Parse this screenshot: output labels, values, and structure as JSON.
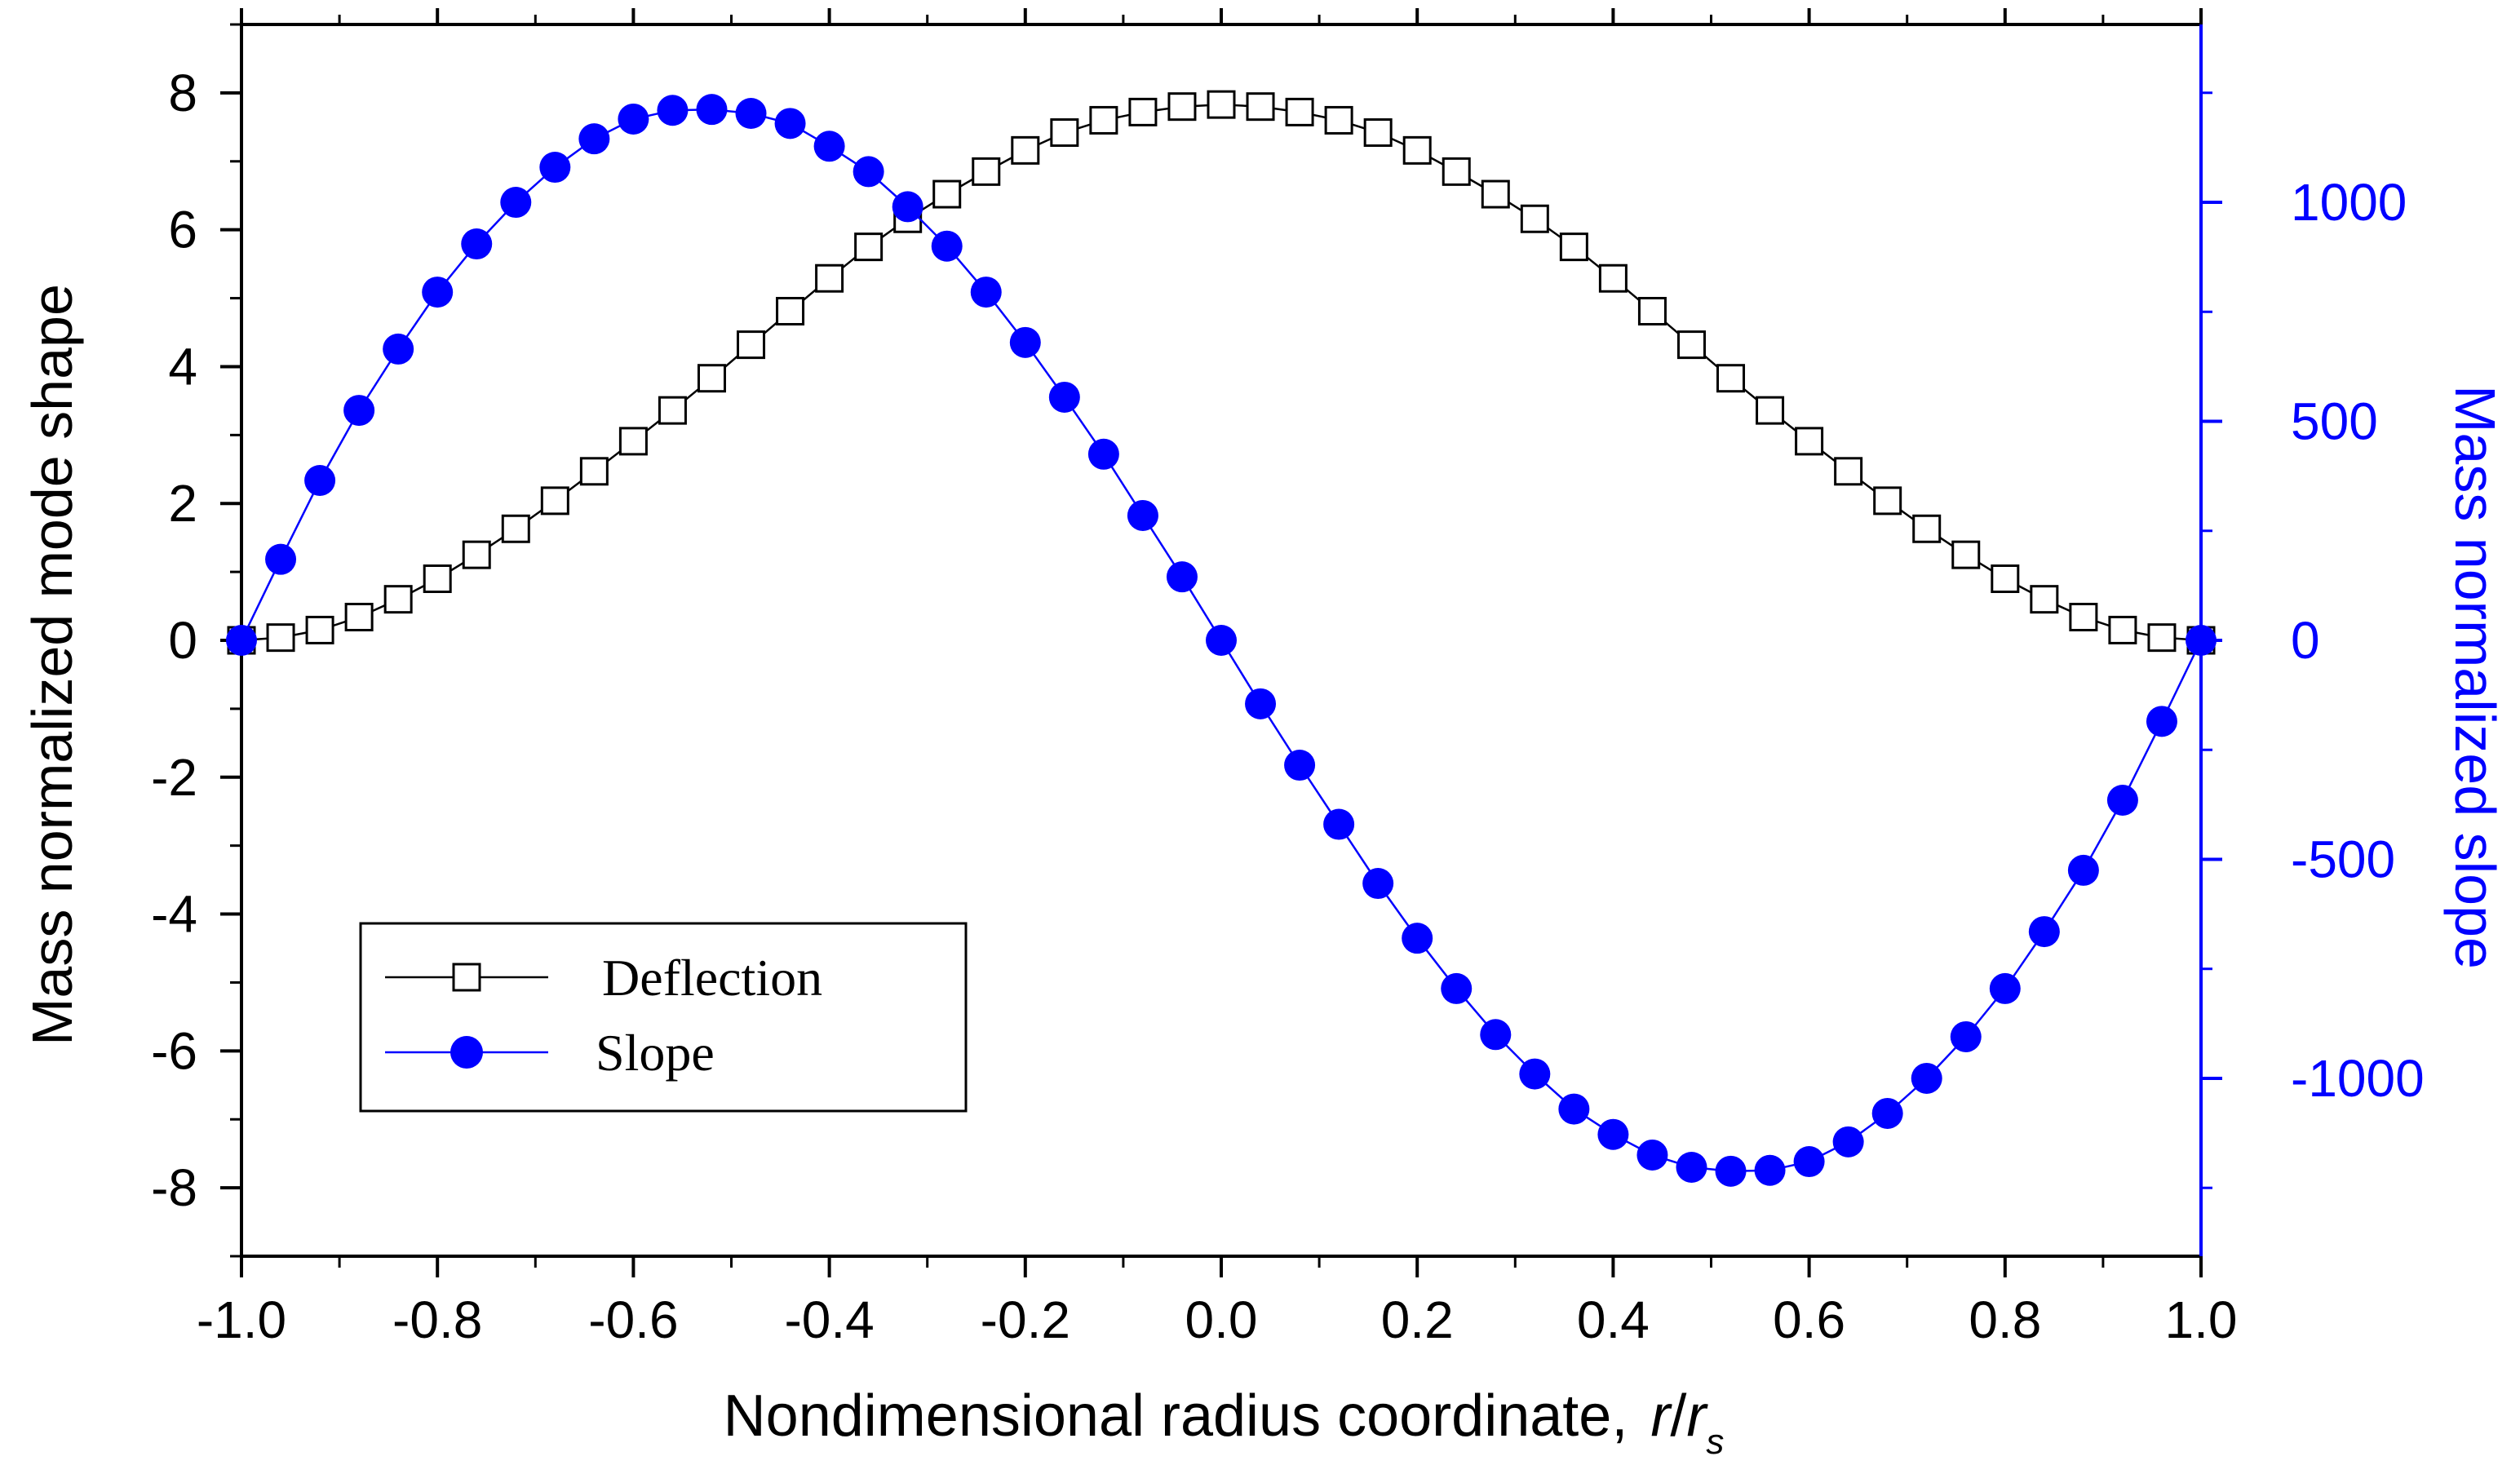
{
  "chart_data": {
    "type": "line",
    "title": "",
    "xlabel": "Nondimensional radius coordinate,",
    "xlabel_var": "r",
    "xlabel_sep": "/",
    "xlabel_var2": "r",
    "xlabel_sub": "s",
    "ylabel_left": "Mass normalized mode shape",
    "ylabel_right": "Mass normalized slope",
    "xlim": [
      -1.0,
      1.0
    ],
    "ylim_left": [
      -9,
      9
    ],
    "ylim_right": [
      -1406,
      1406
    ],
    "x_ticks": [
      "-1.0",
      "-0.8",
      "-0.6",
      "-0.4",
      "-0.2",
      "0.0",
      "0.2",
      "0.4",
      "0.6",
      "0.8",
      "1.0"
    ],
    "y_left_ticks": [
      "-8",
      "-6",
      "-4",
      "-2",
      "0",
      "2",
      "4",
      "6",
      "8"
    ],
    "y_right_ticks": [
      "-1000",
      "-500",
      "0",
      "500",
      "1000"
    ],
    "legend": {
      "position": "lower-left",
      "entries": [
        "Deflection",
        "Slope"
      ]
    },
    "colors": {
      "deflection": "#000000",
      "slope": "#0000ff",
      "right_axis": "#0000ff",
      "axes": "#000000"
    },
    "series": [
      {
        "name": "Deflection",
        "axis": "left",
        "marker": "open-square",
        "x": [
          -1.0,
          -0.96,
          -0.92,
          -0.88,
          -0.84,
          -0.8,
          -0.76,
          -0.72,
          -0.68,
          -0.64,
          -0.6,
          -0.56,
          -0.52,
          -0.48,
          -0.44,
          -0.4,
          -0.36,
          -0.32,
          -0.28,
          -0.24,
          -0.2,
          -0.16,
          -0.12,
          -0.08,
          -0.04,
          0.0,
          0.04,
          0.08,
          0.12,
          0.16,
          0.2,
          0.24,
          0.28,
          0.32,
          0.36,
          0.4,
          0.44,
          0.48,
          0.52,
          0.56,
          0.6,
          0.64,
          0.68,
          0.72,
          0.76,
          0.8,
          0.84,
          0.88,
          0.92,
          0.96,
          1.0
        ],
        "values": [
          0.0,
          0.04,
          0.15,
          0.34,
          0.6,
          0.9,
          1.25,
          1.63,
          2.04,
          2.47,
          2.91,
          3.36,
          3.83,
          4.32,
          4.81,
          5.29,
          5.75,
          6.16,
          6.52,
          6.85,
          7.16,
          7.42,
          7.6,
          7.72,
          7.8,
          7.83,
          7.8,
          7.72,
          7.6,
          7.42,
          7.16,
          6.85,
          6.52,
          6.16,
          5.75,
          5.29,
          4.81,
          4.32,
          3.83,
          3.36,
          2.91,
          2.47,
          2.04,
          1.63,
          1.25,
          0.9,
          0.6,
          0.34,
          0.15,
          0.04,
          0.0
        ]
      },
      {
        "name": "Slope",
        "axis": "right",
        "marker": "filled-circle",
        "x": [
          -1.0,
          -0.96,
          -0.92,
          -0.88,
          -0.84,
          -0.8,
          -0.76,
          -0.72,
          -0.68,
          -0.64,
          -0.6,
          -0.56,
          -0.52,
          -0.48,
          -0.44,
          -0.4,
          -0.36,
          -0.32,
          -0.28,
          -0.24,
          -0.2,
          -0.16,
          -0.12,
          -0.08,
          -0.04,
          0.0,
          0.04,
          0.08,
          0.12,
          0.16,
          0.2,
          0.24,
          0.28,
          0.32,
          0.36,
          0.4,
          0.44,
          0.48,
          0.52,
          0.56,
          0.6,
          0.64,
          0.68,
          0.72,
          0.76,
          0.8,
          0.84,
          0.88,
          0.92,
          0.96,
          1.0
        ],
        "values": [
          0,
          185,
          365,
          525,
          665,
          795,
          905,
          1000,
          1080,
          1145,
          1190,
          1210,
          1212,
          1203,
          1180,
          1128,
          1070,
          990,
          900,
          795,
          680,
          555,
          425,
          285,
          145,
          0,
          -145,
          -285,
          -420,
          -555,
          -680,
          -795,
          -900,
          -990,
          -1070,
          -1128,
          -1175,
          -1203,
          -1212,
          -1210,
          -1190,
          -1145,
          -1080,
          -1000,
          -905,
          -795,
          -665,
          -525,
          -365,
          -185,
          0
        ]
      }
    ]
  }
}
